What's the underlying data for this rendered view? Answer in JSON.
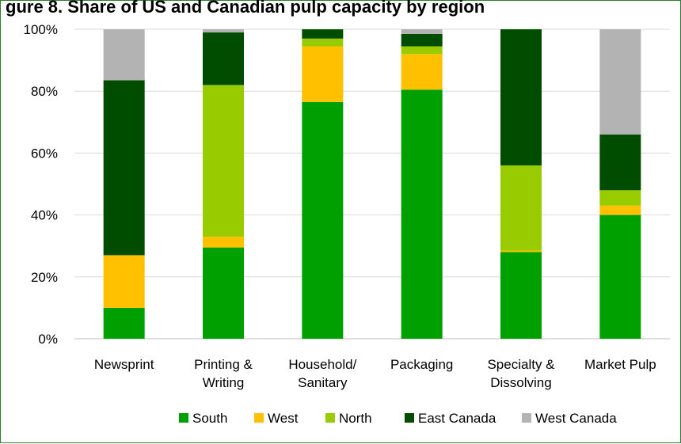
{
  "title_visible": "gure 8. Share of US and Canadian pulp capacity by region",
  "chart_data": {
    "type": "bar",
    "stacked": true,
    "percent": true,
    "categories": [
      [
        "Newsprint"
      ],
      [
        "Printing &",
        "Writing"
      ],
      [
        "Household/",
        "Sanitary"
      ],
      [
        "Packaging"
      ],
      [
        "Specialty &",
        "Dissolving"
      ],
      [
        "Market Pulp"
      ]
    ],
    "y_ticks": [
      "0%",
      "20%",
      "40%",
      "60%",
      "80%",
      "100%"
    ],
    "ylim": [
      0,
      100
    ],
    "series": [
      {
        "name": "South",
        "color": "#00a000",
        "values": [
          10,
          29.5,
          76.5,
          80.5,
          28,
          40
        ]
      },
      {
        "name": "West",
        "color": "#ffc000",
        "values": [
          17,
          3.5,
          18,
          11.5,
          0.5,
          3
        ]
      },
      {
        "name": "North",
        "color": "#99cc00",
        "values": [
          0,
          49,
          2.5,
          2.5,
          27.5,
          5
        ]
      },
      {
        "name": "East Canada",
        "color": "#004d00",
        "values": [
          56.5,
          17,
          3,
          4,
          44,
          18
        ]
      },
      {
        "name": "West Canada",
        "color": "#b3b3b3",
        "values": [
          16.5,
          1,
          0,
          1.5,
          0,
          34
        ]
      }
    ],
    "grid": true,
    "legend_position": "bottom"
  }
}
